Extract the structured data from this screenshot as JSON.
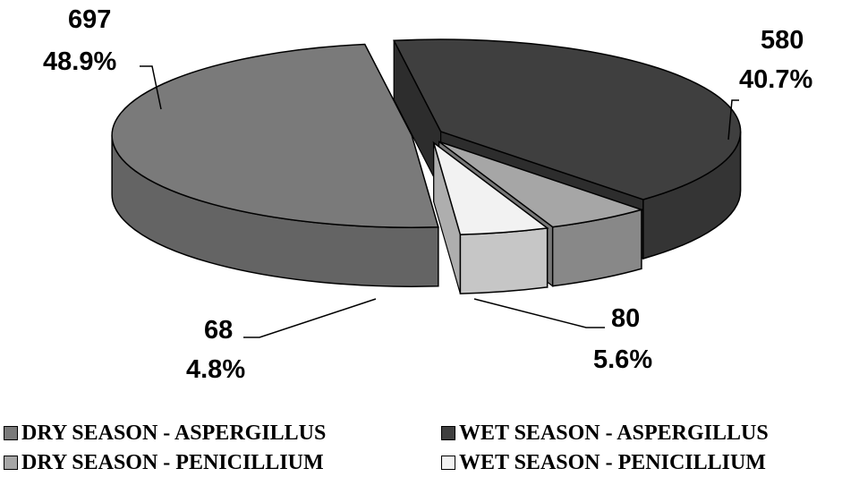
{
  "chart_data": {
    "type": "pie",
    "title": "",
    "categories": [
      "DRY SEASON - ASPERGILLUS",
      "WET SEASON - ASPERGILLUS",
      "DRY SEASON - PENICILLIUM",
      "WET SEASON - PENICILLIUM"
    ],
    "values": [
      697,
      580,
      80,
      68
    ],
    "labels": [
      {
        "value": "697",
        "percent": "48.9%"
      },
      {
        "value": "580",
        "percent": "40.7%"
      },
      {
        "value": "80",
        "percent": "5.6%"
      },
      {
        "value": "68",
        "percent": "4.8%"
      }
    ],
    "colors": [
      "#7a7a7a",
      "#3f3f3f",
      "#a6a6a6",
      "#f2f2f2"
    ],
    "exploded": true,
    "style": "3d",
    "legend_position": "bottom"
  },
  "legend": {
    "items": [
      {
        "label": "DRY SEASON - ASPERGILLUS",
        "color": "#7a7a7a"
      },
      {
        "label": "WET SEASON - ASPERGILLUS",
        "color": "#3f3f3f"
      },
      {
        "label": "DRY SEASON - PENICILLIUM",
        "color": "#a6a6a6"
      },
      {
        "label": "WET SEASON - PENICILLIUM",
        "color": "#f2f2f2"
      }
    ]
  }
}
